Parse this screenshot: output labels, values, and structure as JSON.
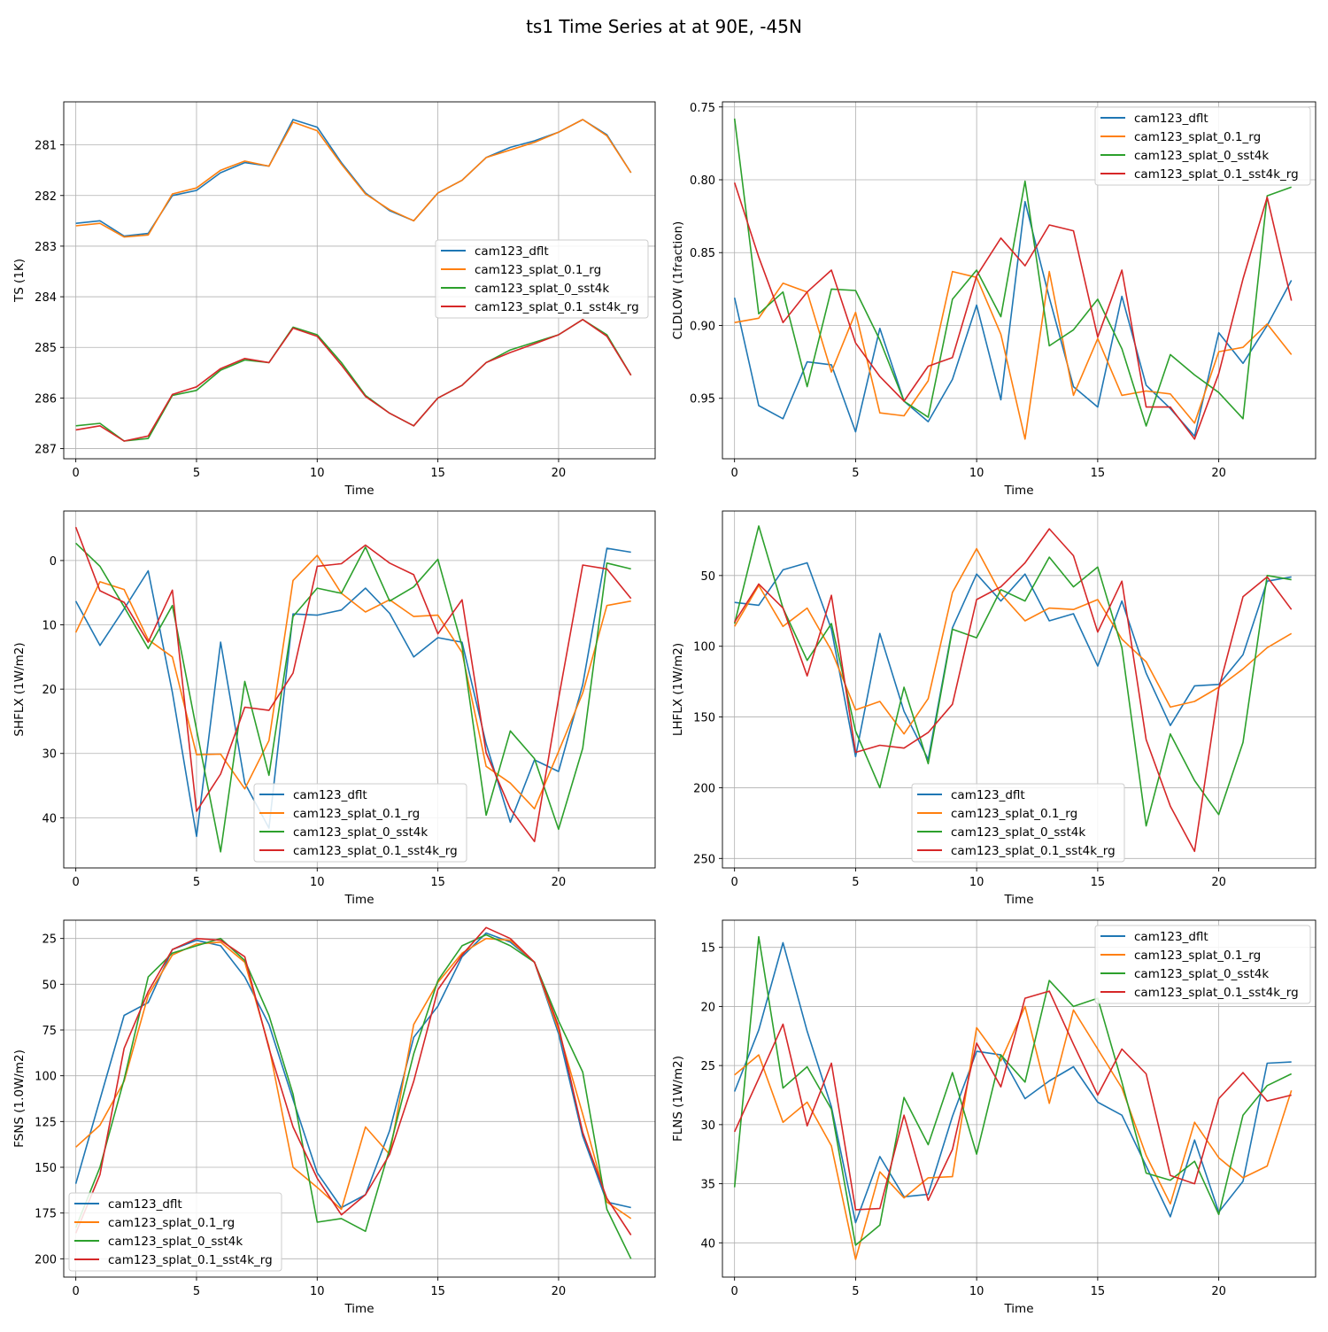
{
  "title": "ts1 Time Series at at 90E, -45N",
  "colors": {
    "cam123_dflt": "#1f77b4",
    "cam123_splat_0.1_rg": "#ff7f0e",
    "cam123_splat_0_sst4k": "#2ca02c",
    "cam123_splat_0.1_sst4k_rg": "#d62728"
  },
  "chart_data": [
    {
      "type": "line",
      "title": "",
      "xlabel": "Time",
      "ylabel": "TS (1K)",
      "x": [
        0,
        1,
        2,
        3,
        4,
        5,
        6,
        7,
        8,
        9,
        10,
        11,
        12,
        13,
        14,
        15,
        16,
        17,
        18,
        19,
        20,
        21,
        22,
        23
      ],
      "xlim": [
        -0.5,
        24.0
      ],
      "ylim": [
        287.2,
        280.15
      ],
      "y_inverted": true,
      "xticks": [
        0,
        5,
        10,
        15,
        20
      ],
      "yticks": [
        281,
        282,
        283,
        284,
        285,
        286,
        287
      ],
      "legend_position": "center-right",
      "series": [
        {
          "name": "cam123_dflt",
          "values": [
            282.55,
            282.5,
            282.8,
            282.75,
            282.0,
            281.9,
            281.55,
            281.35,
            281.42,
            280.5,
            280.65,
            281.35,
            281.95,
            282.3,
            282.5,
            281.95,
            281.7,
            281.25,
            281.05,
            280.92,
            280.75,
            280.5,
            280.8,
            281.55
          ]
        },
        {
          "name": "cam123_splat_0.1_rg",
          "values": [
            282.6,
            282.55,
            282.82,
            282.78,
            281.97,
            281.85,
            281.5,
            281.32,
            281.42,
            280.55,
            280.72,
            281.38,
            281.97,
            282.28,
            282.5,
            281.95,
            281.7,
            281.25,
            281.1,
            280.95,
            280.75,
            280.5,
            280.82,
            281.55
          ]
        },
        {
          "name": "cam123_splat_0_sst4k",
          "values": [
            286.55,
            286.5,
            286.85,
            286.8,
            285.95,
            285.85,
            285.45,
            285.25,
            285.3,
            284.6,
            284.75,
            285.3,
            285.95,
            286.3,
            286.55,
            286.0,
            285.75,
            285.3,
            285.05,
            284.9,
            284.75,
            284.45,
            284.75,
            285.55
          ]
        },
        {
          "name": "cam123_splat_0.1_sst4k_rg",
          "values": [
            286.63,
            286.55,
            286.85,
            286.75,
            285.93,
            285.78,
            285.42,
            285.22,
            285.3,
            284.62,
            284.78,
            285.35,
            285.97,
            286.3,
            286.55,
            286.0,
            285.75,
            285.3,
            285.1,
            284.93,
            284.75,
            284.45,
            284.78,
            285.55
          ]
        }
      ]
    },
    {
      "type": "line",
      "title": "",
      "xlabel": "Time",
      "ylabel": "CLDLOW (1fraction)",
      "x": [
        0,
        1,
        2,
        3,
        4,
        5,
        6,
        7,
        8,
        9,
        10,
        11,
        12,
        13,
        14,
        15,
        16,
        17,
        18,
        19,
        20,
        21,
        22,
        23
      ],
      "xlim": [
        -0.5,
        24.0
      ],
      "ylim": [
        0.9915,
        0.7465
      ],
      "y_inverted": true,
      "xticks": [
        0,
        5,
        10,
        15,
        20
      ],
      "yticks": [
        0.75,
        0.8,
        0.85,
        0.9,
        0.95
      ],
      "ytick_labels": [
        "0.75",
        "0.80",
        "0.85",
        "0.90",
        "0.95"
      ],
      "legend_position": "upper-right",
      "series": [
        {
          "name": "cam123_dflt",
          "values": [
            0.881,
            0.955,
            0.964,
            0.925,
            0.927,
            0.973,
            0.902,
            0.952,
            0.966,
            0.937,
            0.886,
            0.951,
            0.815,
            0.881,
            0.942,
            0.956,
            0.88,
            0.941,
            0.957,
            0.976,
            0.905,
            0.926,
            0.9,
            0.869
          ]
        },
        {
          "name": "cam123_splat_0.1_rg",
          "values": [
            0.898,
            0.895,
            0.871,
            0.877,
            0.932,
            0.891,
            0.96,
            0.962,
            0.938,
            0.863,
            0.867,
            0.906,
            0.978,
            0.863,
            0.948,
            0.909,
            0.948,
            0.945,
            0.947,
            0.967,
            0.918,
            0.915,
            0.899,
            0.92
          ]
        },
        {
          "name": "cam123_splat_0_sst4k",
          "values": [
            0.758,
            0.892,
            0.877,
            0.942,
            0.875,
            0.876,
            0.91,
            0.952,
            0.963,
            0.882,
            0.862,
            0.894,
            0.801,
            0.914,
            0.903,
            0.882,
            0.916,
            0.969,
            0.92,
            0.934,
            0.946,
            0.964,
            0.811,
            0.805
          ]
        },
        {
          "name": "cam123_splat_0.1_sst4k_rg",
          "values": [
            0.802,
            0.853,
            0.898,
            0.877,
            0.862,
            0.912,
            0.935,
            0.952,
            0.928,
            0.922,
            0.866,
            0.84,
            0.859,
            0.831,
            0.835,
            0.908,
            0.862,
            0.956,
            0.956,
            0.978,
            0.933,
            0.868,
            0.812,
            0.883
          ]
        }
      ]
    },
    {
      "type": "line",
      "title": "",
      "xlabel": "Time",
      "ylabel": "SHFLX (1W/m2)",
      "x": [
        0,
        1,
        2,
        3,
        4,
        5,
        6,
        7,
        8,
        9,
        10,
        11,
        12,
        13,
        14,
        15,
        16,
        17,
        18,
        19,
        20,
        21,
        22,
        23
      ],
      "xlim": [
        -0.5,
        24.0
      ],
      "ylim": [
        47.8,
        -7.7
      ],
      "y_inverted": true,
      "xticks": [
        0,
        5,
        10,
        15,
        20
      ],
      "yticks": [
        0,
        10,
        20,
        30,
        40
      ],
      "legend_position": "lower-center",
      "series": [
        {
          "name": "cam123_dflt",
          "values": [
            6.3,
            13.2,
            7.5,
            1.6,
            20.5,
            42.9,
            12.7,
            34.6,
            41.6,
            8.3,
            8.5,
            7.7,
            4.3,
            8.2,
            15.0,
            12.0,
            12.7,
            28.5,
            40.7,
            31.0,
            32.8,
            19.3,
            -1.9,
            -1.3
          ]
        },
        {
          "name": "cam123_splat_0.1_rg",
          "values": [
            11.2,
            3.3,
            4.5,
            12.3,
            15.0,
            30.2,
            30.1,
            35.5,
            28.0,
            3.1,
            -0.8,
            5.1,
            8.0,
            6.1,
            8.7,
            8.5,
            14.3,
            32.0,
            34.6,
            38.6,
            29.7,
            20.6,
            7.0,
            6.3
          ]
        },
        {
          "name": "cam123_splat_0_sst4k",
          "values": [
            -2.7,
            0.9,
            7.2,
            13.7,
            7.0,
            26.3,
            45.3,
            18.8,
            33.4,
            8.7,
            4.3,
            5.1,
            -2.1,
            6.3,
            4.1,
            -0.2,
            13.3,
            39.6,
            26.5,
            30.8,
            41.8,
            29.2,
            0.4,
            1.3
          ]
        },
        {
          "name": "cam123_splat_0.1_sst4k_rg",
          "values": [
            -5.2,
            4.7,
            6.5,
            12.7,
            4.6,
            39.0,
            33.2,
            22.8,
            23.3,
            17.5,
            0.9,
            0.5,
            -2.4,
            0.4,
            2.2,
            11.4,
            6.1,
            29.9,
            38.6,
            43.7,
            21.5,
            0.7,
            1.3,
            5.9
          ]
        }
      ]
    },
    {
      "type": "line",
      "title": "",
      "xlabel": "Time",
      "ylabel": "LHFLX (1W/m2)",
      "x": [
        0,
        1,
        2,
        3,
        4,
        5,
        6,
        7,
        8,
        9,
        10,
        11,
        12,
        13,
        14,
        15,
        16,
        17,
        18,
        19,
        20,
        21,
        22,
        23
      ],
      "xlim": [
        -0.5,
        24.0
      ],
      "ylim": [
        256.7,
        4.4
      ],
      "y_inverted": true,
      "xticks": [
        0,
        5,
        10,
        15,
        20
      ],
      "yticks": [
        50,
        100,
        150,
        200,
        250
      ],
      "legend_position": "lower-center",
      "series": [
        {
          "name": "cam123_dflt",
          "values": [
            69,
            71,
            46,
            41,
            88,
            178,
            91,
            146,
            180,
            87,
            49,
            68,
            49,
            82,
            77,
            114,
            68,
            119,
            156,
            128,
            127,
            106,
            54,
            51
          ]
        },
        {
          "name": "cam123_splat_0.1_rg",
          "values": [
            86,
            57,
            86,
            73,
            103,
            145,
            139,
            162,
            137,
            62,
            31,
            63,
            82,
            73,
            74,
            67,
            95,
            111,
            143,
            139,
            129,
            116,
            101,
            91
          ]
        },
        {
          "name": "cam123_splat_0_sst4k",
          "values": [
            84,
            15,
            73,
            110,
            84,
            160,
            200,
            129,
            183,
            88,
            94,
            60,
            68,
            37,
            58,
            44,
            101,
            227,
            162,
            195,
            219,
            168,
            50,
            53
          ]
        },
        {
          "name": "cam123_splat_0.1_sst4k_rg",
          "values": [
            83,
            56,
            73,
            121,
            64,
            175,
            170,
            172,
            161,
            141,
            67,
            58,
            41,
            17,
            36,
            90,
            54,
            166,
            213,
            245,
            130,
            65,
            51,
            74
          ]
        }
      ]
    },
    {
      "type": "line",
      "title": "",
      "xlabel": "Time",
      "ylabel": "FSNS (1.0W/m2)",
      "x": [
        0,
        1,
        2,
        3,
        4,
        5,
        6,
        7,
        8,
        9,
        10,
        11,
        12,
        13,
        14,
        15,
        16,
        17,
        18,
        19,
        20,
        21,
        22,
        23
      ],
      "xlim": [
        -0.5,
        24.0
      ],
      "ylim": [
        210.0,
        15.0
      ],
      "y_inverted": true,
      "xticks": [
        0,
        5,
        10,
        15,
        20
      ],
      "yticks": [
        25,
        50,
        75,
        100,
        125,
        150,
        175,
        200
      ],
      "legend_position": "lower-left",
      "series": [
        {
          "name": "cam123_dflt",
          "values": [
            159,
            113,
            67,
            60,
            31,
            26,
            29,
            46,
            72,
            113,
            153,
            172,
            165,
            130,
            79,
            62,
            35,
            22,
            27,
            38,
            77,
            133,
            169,
            172
          ]
        },
        {
          "name": "cam123_splat_0.1_rg",
          "values": [
            139,
            127,
            103,
            56,
            34,
            28,
            27,
            38,
            84,
            150,
            161,
            173,
            128,
            143,
            72,
            49,
            33,
            25,
            26,
            38,
            75,
            121,
            169,
            178
          ]
        },
        {
          "name": "cam123_splat_0_sst4k",
          "values": [
            183,
            150,
            102,
            46,
            33,
            29,
            25,
            37,
            67,
            110,
            180,
            178,
            185,
            140,
            88,
            48,
            29,
            23,
            29,
            38,
            70,
            98,
            173,
            200
          ]
        },
        {
          "name": "cam123_splat_0.1_sst4k_rg",
          "values": [
            186,
            154,
            85,
            54,
            31,
            25,
            26,
            35,
            85,
            128,
            156,
            176,
            165,
            143,
            103,
            53,
            34,
            19,
            25,
            38,
            73,
            131,
            167,
            187
          ]
        }
      ]
    },
    {
      "type": "line",
      "title": "",
      "xlabel": "Time",
      "ylabel": "FLNS (1W/m2)",
      "x": [
        0,
        1,
        2,
        3,
        4,
        5,
        6,
        7,
        8,
        9,
        10,
        11,
        12,
        13,
        14,
        15,
        16,
        17,
        18,
        19,
        20,
        21,
        22,
        23
      ],
      "xlim": [
        -0.5,
        24.0
      ],
      "ylim": [
        42.9,
        12.7
      ],
      "y_inverted": true,
      "xticks": [
        0,
        5,
        10,
        15,
        20
      ],
      "yticks": [
        15,
        20,
        25,
        30,
        35,
        40
      ],
      "legend_position": "upper-right",
      "series": [
        {
          "name": "cam123_dflt",
          "values": [
            27.2,
            22.0,
            14.6,
            22.1,
            28.5,
            38.3,
            32.7,
            36.1,
            35.9,
            29.3,
            23.8,
            24.1,
            27.8,
            26.3,
            25.1,
            28.1,
            29.2,
            33.5,
            37.8,
            31.3,
            37.4,
            34.8,
            24.8,
            24.7
          ]
        },
        {
          "name": "cam123_splat_0.1_rg",
          "values": [
            25.8,
            24.1,
            29.8,
            28.1,
            31.8,
            41.4,
            34.0,
            36.2,
            34.5,
            34.4,
            21.8,
            24.6,
            20.0,
            28.2,
            20.3,
            23.6,
            26.9,
            32.6,
            36.7,
            29.8,
            32.8,
            34.5,
            33.5,
            27.1
          ]
        },
        {
          "name": "cam123_splat_0_sst4k",
          "values": [
            35.3,
            14.1,
            26.9,
            25.1,
            28.7,
            40.2,
            38.5,
            27.7,
            31.7,
            25.6,
            32.5,
            24.1,
            26.4,
            17.8,
            20.0,
            19.3,
            26.4,
            34.1,
            34.7,
            33.1,
            37.6,
            29.2,
            26.7,
            25.7
          ]
        },
        {
          "name": "cam123_splat_0.1_sst4k_rg",
          "values": [
            30.6,
            26.1,
            21.5,
            30.1,
            24.8,
            37.2,
            37.1,
            29.2,
            36.4,
            32.1,
            23.1,
            26.8,
            19.3,
            18.7,
            23.2,
            27.5,
            23.6,
            25.7,
            34.3,
            35.0,
            27.8,
            25.6,
            28.0,
            27.5
          ]
        }
      ]
    }
  ]
}
